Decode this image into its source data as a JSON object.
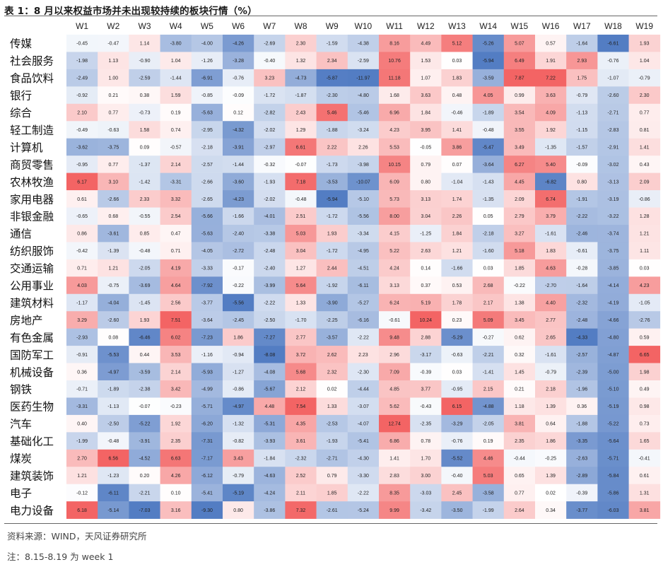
{
  "title": "表 1：8 月以来权益市场并未出现较持续的板块行情（%）",
  "source": "资料来源：WIND，天风证券研究所",
  "note": "注：8.15-8.19 为 week 1",
  "colors": {
    "positive": "#f25c5c",
    "negative": "#4a76c0",
    "neutral": "#ffffff"
  },
  "chart_data": {
    "type": "heatmap",
    "columns": [
      "W1",
      "W2",
      "W3",
      "W4",
      "W5",
      "W6",
      "W7",
      "W8",
      "W9",
      "W10",
      "W11",
      "W12",
      "W13",
      "W14",
      "W15",
      "W16",
      "W17",
      "W18",
      "W19"
    ],
    "rows": [
      "传媒",
      "社会服务",
      "食品饮料",
      "银行",
      "综合",
      "轻工制造",
      "计算机",
      "商贸零售",
      "农林牧渔",
      "家用电器",
      "非银金融",
      "通信",
      "纺织服饰",
      "交通运输",
      "公用事业",
      "建筑材料",
      "房地产",
      "有色金属",
      "国防军工",
      "机械设备",
      "钢铁",
      "医药生物",
      "汽车",
      "基础化工",
      "煤炭",
      "建筑装饰",
      "电子",
      "电力设备"
    ],
    "values": [
      [
        -0.45,
        -0.47,
        1.14,
        -3.8,
        -4.0,
        -4.26,
        -2.69,
        2.3,
        -1.59,
        -4.38,
        8.16,
        4.49,
        5.12,
        -5.26,
        5.07,
        0.57,
        -1.64,
        -6.61,
        1.93
      ],
      [
        -1.98,
        1.13,
        -0.9,
        1.04,
        -1.26,
        -3.28,
        -0.4,
        1.32,
        2.34,
        -2.59,
        10.76,
        1.53,
        0.03,
        -5.94,
        6.49,
        1.91,
        2.93,
        -0.76,
        1.04
      ],
      [
        -2.49,
        1.0,
        -2.59,
        -1.44,
        -6.91,
        -0.76,
        3.23,
        -4.73,
        -5.87,
        -11.97,
        11.18,
        1.07,
        1.83,
        -3.59,
        7.87,
        7.22,
        1.75,
        -1.07,
        -0.79
      ],
      [
        -0.92,
        0.21,
        0.38,
        1.59,
        -0.85,
        -0.09,
        -1.72,
        -1.87,
        -2.3,
        -4.8,
        1.68,
        3.63,
        0.48,
        4.05,
        0.99,
        3.63,
        -0.79,
        -2.6,
        2.3
      ],
      [
        2.1,
        0.77,
        -0.73,
        0.19,
        -5.63,
        0.12,
        -2.82,
        2.43,
        5.46,
        -5.46,
        6.96,
        1.84,
        -0.46,
        -1.89,
        3.54,
        4.09,
        -1.13,
        -2.71,
        0.77
      ],
      [
        -0.49,
        -0.63,
        1.58,
        0.74,
        -2.95,
        -4.32,
        -2.02,
        1.29,
        -1.88,
        -3.24,
        4.23,
        3.95,
        1.41,
        -0.48,
        3.55,
        1.92,
        -1.15,
        -2.83,
        0.81
      ],
      [
        -3.62,
        -3.75,
        0.09,
        -0.57,
        -2.18,
        -3.91,
        -2.97,
        6.61,
        2.22,
        2.26,
        5.53,
        -0.05,
        3.86,
        -5.47,
        3.49,
        -1.35,
        -1.57,
        -2.91,
        1.41
      ],
      [
        -0.95,
        0.77,
        -1.37,
        2.14,
        -2.57,
        -1.44,
        -0.32,
        -0.07,
        -1.73,
        -3.98,
        10.15,
        0.79,
        0.07,
        -3.64,
        6.27,
        5.4,
        -0.09,
        -3.02,
        0.43
      ],
      [
        6.17,
        3.1,
        -1.42,
        -3.31,
        -2.66,
        -3.6,
        -1.93,
        7.18,
        -3.53,
        -10.07,
        6.09,
        0.8,
        -1.04,
        -1.43,
        4.45,
        -6.82,
        0.8,
        -3.13,
        2.09
      ],
      [
        0.61,
        -2.66,
        2.33,
        3.32,
        -2.65,
        -4.23,
        -2.02,
        -0.48,
        -5.94,
        -5.1,
        5.73,
        3.13,
        1.74,
        -1.35,
        2.09,
        6.74,
        -1.91,
        -3.19,
        -0.86
      ],
      [
        -0.65,
        0.68,
        -0.55,
        2.54,
        -5.66,
        -1.66,
        -4.01,
        2.51,
        -1.72,
        -5.56,
        8.0,
        3.04,
        2.26,
        0.05,
        2.79,
        3.79,
        -2.22,
        -3.22,
        1.28
      ],
      [
        0.86,
        -3.61,
        0.85,
        0.47,
        -5.63,
        -2.4,
        -3.38,
        5.03,
        1.93,
        -3.34,
        4.15,
        -1.25,
        1.84,
        -2.18,
        3.27,
        -1.61,
        -2.46,
        -3.74,
        1.21
      ],
      [
        -0.42,
        -1.39,
        -0.48,
        0.71,
        -4.05,
        -2.72,
        -2.48,
        3.04,
        -1.72,
        -4.95,
        5.22,
        2.63,
        1.21,
        -1.6,
        5.18,
        1.83,
        -0.61,
        -3.75,
        1.11
      ],
      [
        0.71,
        1.21,
        -2.05,
        4.19,
        -3.33,
        -0.17,
        -2.4,
        1.27,
        2.44,
        -4.51,
        4.24,
        0.14,
        -1.66,
        0.03,
        1.85,
        4.63,
        -0.28,
        -3.85,
        0.03
      ],
      [
        4.03,
        -0.75,
        -3.69,
        4.64,
        -7.92,
        -0.22,
        -3.99,
        5.64,
        -1.92,
        -6.11,
        3.13,
        0.37,
        0.53,
        2.68,
        -0.22,
        -2.7,
        -1.64,
        -4.14,
        4.23
      ],
      [
        -1.17,
        -4.04,
        -1.45,
        2.56,
        -3.77,
        -5.56,
        -2.22,
        1.33,
        -3.9,
        -5.27,
        6.24,
        5.19,
        1.78,
        2.17,
        1.38,
        4.4,
        -2.32,
        -4.19,
        -1.05
      ],
      [
        3.29,
        -2.6,
        1.93,
        7.51,
        -3.64,
        -2.45,
        -2.5,
        -1.7,
        -2.25,
        -6.16,
        -0.61,
        10.24,
        0.23,
        5.09,
        3.45,
        2.77,
        -2.48,
        -4.66,
        -2.76
      ],
      [
        -2.93,
        0.08,
        -6.46,
        6.02,
        -7.23,
        1.86,
        -7.27,
        2.77,
        -3.57,
        -2.22,
        9.48,
        2.88,
        -5.29,
        -0.27,
        0.62,
        2.65,
        -4.33,
        -4.8,
        0.59
      ],
      [
        -0.91,
        -5.53,
        0.44,
        3.53,
        -1.16,
        -0.94,
        -8.08,
        3.72,
        2.62,
        2.23,
        2.96,
        -3.17,
        -0.63,
        -2.21,
        0.32,
        -1.61,
        -2.57,
        -4.87,
        6.65
      ],
      [
        0.36,
        -4.97,
        -3.59,
        2.14,
        -5.93,
        -1.27,
        -4.08,
        5.68,
        2.32,
        -2.3,
        7.09,
        -0.39,
        0.03,
        -1.41,
        1.45,
        -0.79,
        -2.39,
        -5.0,
        1.98
      ],
      [
        -0.71,
        -1.89,
        -2.38,
        3.42,
        -4.99,
        -0.86,
        -5.67,
        2.12,
        0.02,
        -4.44,
        4.85,
        3.77,
        -0.95,
        2.15,
        0.21,
        2.18,
        -1.96,
        -5.1,
        0.49
      ],
      [
        -3.31,
        -1.13,
        -0.07,
        -0.23,
        -5.71,
        -4.97,
        4.48,
        7.54,
        1.33,
        -3.07,
        5.62,
        -0.43,
        6.15,
        -4.88,
        1.18,
        1.39,
        0.36,
        -5.19,
        0.98
      ],
      [
        0.4,
        -2.5,
        -5.22,
        1.92,
        -6.2,
        -1.32,
        -5.31,
        4.35,
        -2.53,
        -4.07,
        12.74,
        -2.35,
        -3.29,
        -2.05,
        3.81,
        0.64,
        -1.88,
        -5.22,
        0.73
      ],
      [
        -1.99,
        -0.48,
        -3.91,
        2.35,
        -7.31,
        -0.82,
        -3.93,
        3.61,
        -1.93,
        -5.41,
        6.86,
        0.78,
        -0.76,
        0.19,
        2.35,
        1.86,
        -3.35,
        -5.64,
        1.65
      ],
      [
        2.7,
        6.56,
        -4.52,
        6.63,
        -7.17,
        3.43,
        -1.84,
        -2.32,
        -2.71,
        -4.3,
        1.41,
        1.7,
        -5.52,
        4.46,
        -0.44,
        -0.25,
        -2.63,
        -5.71,
        -0.41
      ],
      [
        1.21,
        -1.23,
        0.2,
        4.26,
        -6.12,
        -0.79,
        -4.63,
        2.52,
        0.79,
        -3.3,
        2.83,
        3.0,
        -0.4,
        5.03,
        0.65,
        1.39,
        -2.89,
        -5.84,
        0.61
      ],
      [
        -0.12,
        -6.11,
        -2.21,
        0.1,
        -5.41,
        -5.19,
        -4.24,
        2.11,
        1.85,
        -2.22,
        8.35,
        -3.03,
        2.45,
        -3.58,
        0.77,
        0.02,
        -0.39,
        -5.86,
        1.31
      ],
      [
        6.18,
        -5.14,
        -7.03,
        3.16,
        -9.3,
        0.8,
        -3.86,
        7.32,
        -2.61,
        -5.24,
        9.99,
        -3.42,
        -3.5,
        -1.99,
        2.64,
        0.34,
        -3.77,
        -6.03,
        3.81
      ]
    ]
  }
}
